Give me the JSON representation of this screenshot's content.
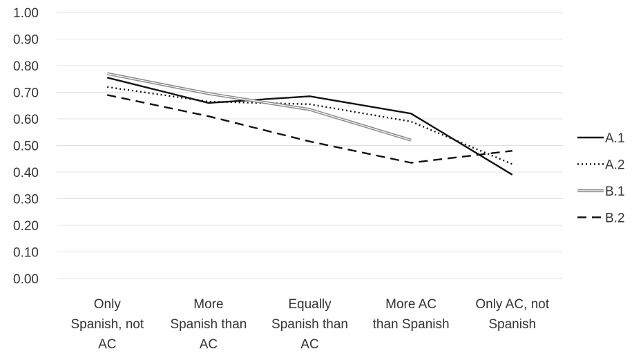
{
  "chart_data": {
    "type": "line",
    "categories": [
      [
        "Only",
        "Spanish, not",
        "AC"
      ],
      [
        "More",
        "Spanish than",
        "AC"
      ],
      [
        "Equally",
        "Spanish than",
        "AC"
      ],
      [
        "More AC",
        "than Spanish"
      ],
      [
        "Only AC, not",
        "Spanish"
      ]
    ],
    "ylim": [
      0,
      1
    ],
    "yticks": [
      "0.00",
      "0.10",
      "0.20",
      "0.30",
      "0.40",
      "0.50",
      "0.60",
      "0.70",
      "0.80",
      "0.90",
      "1.00"
    ],
    "grid": true,
    "legend": "right",
    "series": [
      {
        "name": "A.1",
        "values": [
          0.755,
          0.66,
          0.685,
          0.62,
          0.39
        ],
        "color": "#111111",
        "style": "solid"
      },
      {
        "name": "A.2",
        "values": [
          0.72,
          0.665,
          0.655,
          0.59,
          0.43
        ],
        "color": "#111111",
        "style": "dotted"
      },
      {
        "name": "B.1",
        "values": [
          0.77,
          0.695,
          0.635,
          0.52,
          null
        ],
        "color": "#8a8a8a",
        "style": "double"
      },
      {
        "name": "B.2",
        "values": [
          0.69,
          0.61,
          0.515,
          0.435,
          0.48
        ],
        "color": "#111111",
        "style": "dashed"
      }
    ]
  }
}
